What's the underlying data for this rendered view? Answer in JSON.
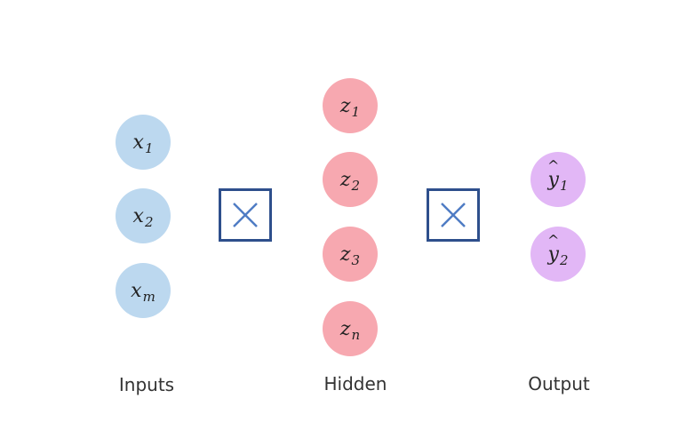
{
  "layers": {
    "inputs": {
      "label": "Inputs",
      "nodes": [
        {
          "var": "x",
          "sub": "1"
        },
        {
          "var": "x",
          "sub": "2"
        },
        {
          "var": "x",
          "sub": "m"
        }
      ]
    },
    "hidden": {
      "label": "Hidden",
      "nodes": [
        {
          "var": "z",
          "sub": "1"
        },
        {
          "var": "z",
          "sub": "2"
        },
        {
          "var": "z",
          "sub": "3"
        },
        {
          "var": "z",
          "sub": "n"
        }
      ]
    },
    "output": {
      "label": "Output",
      "nodes": [
        {
          "var": "y",
          "hat": "^",
          "sub": "1"
        },
        {
          "var": "y",
          "hat": "^",
          "sub": "2"
        }
      ]
    }
  },
  "operators": [
    {
      "symbol": "multiply-icon"
    },
    {
      "symbol": "multiply-icon"
    }
  ],
  "colors": {
    "input_node": "#bcd8ef",
    "hidden_node": "#f7a8b0",
    "output_node": "#e2b7f6",
    "operator_stroke": "#2e4f8c",
    "operator_cross": "#4f7cc4"
  }
}
